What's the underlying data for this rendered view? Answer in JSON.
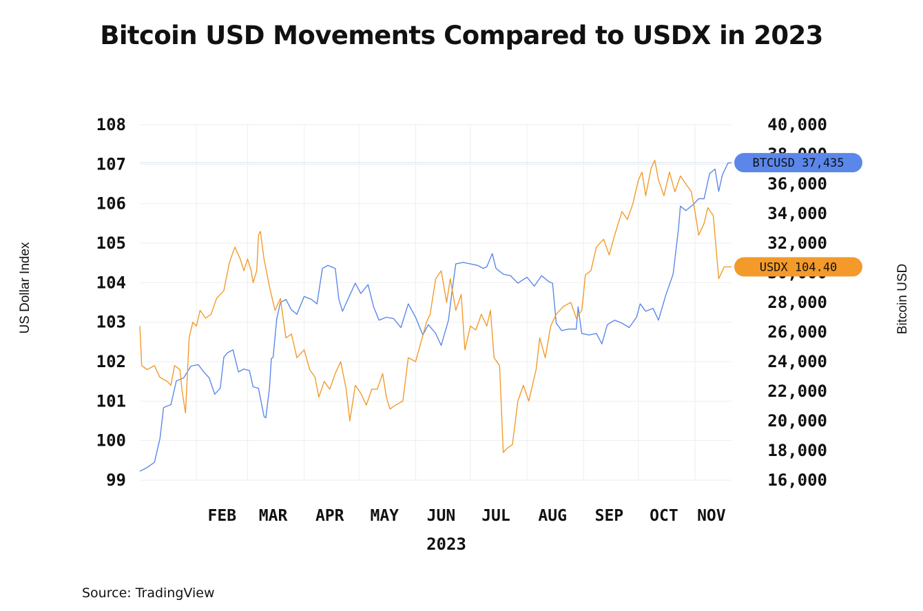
{
  "title": "Bitcoin USD Movements Compared to USDX in 2023",
  "source": "Source: TradingView",
  "colors": {
    "btc": "#5b87ea",
    "usdx": "#f39a2b",
    "grid": "#eeeeee"
  },
  "chart_data": {
    "type": "line",
    "title": "Bitcoin USD Movements Compared to USDX in 2023",
    "xlabel": "2023",
    "ylabel_left": "US Dollar Index",
    "ylabel_right": "Bitcoin USD",
    "x_ticks": [
      "FEB",
      "MAR",
      "APR",
      "MAY",
      "JUN",
      "JUL",
      "AUG",
      "SEP",
      "OCT",
      "NOV"
    ],
    "y_left_ticks": [
      "108",
      "107",
      "106",
      "105",
      "104",
      "103",
      "102",
      "101",
      "100",
      "99"
    ],
    "y_right_ticks": [
      "40,000",
      "38,000",
      "36,000",
      "34,000",
      "32,000",
      "30,000",
      "28,000",
      "26,000",
      "24,000",
      "22,000",
      "20,000",
      "18,000",
      "16,000"
    ],
    "ylim_left": [
      99,
      108
    ],
    "ylim_right": [
      16000,
      40000
    ],
    "grid": true,
    "series": [
      {
        "name": "BTCUSD",
        "axis": "right",
        "last_label": "BTCUSD 37,435",
        "points": [
          [
            "2023-01-01",
            16600
          ],
          [
            "2023-01-05",
            16850
          ],
          [
            "2023-01-09",
            17200
          ],
          [
            "2023-01-12",
            18800
          ],
          [
            "2023-01-14",
            20900
          ],
          [
            "2023-01-18",
            21100
          ],
          [
            "2023-01-21",
            22700
          ],
          [
            "2023-01-25",
            22900
          ],
          [
            "2023-01-29",
            23700
          ],
          [
            "2023-02-02",
            23800
          ],
          [
            "2023-02-05",
            23300
          ],
          [
            "2023-02-08",
            22900
          ],
          [
            "2023-02-11",
            21800
          ],
          [
            "2023-02-14",
            22200
          ],
          [
            "2023-02-16",
            24300
          ],
          [
            "2023-02-18",
            24600
          ],
          [
            "2023-02-21",
            24800
          ],
          [
            "2023-02-24",
            23300
          ],
          [
            "2023-02-27",
            23500
          ],
          [
            "2023-03-02",
            23400
          ],
          [
            "2023-03-04",
            22300
          ],
          [
            "2023-03-07",
            22200
          ],
          [
            "2023-03-10",
            20300
          ],
          [
            "2023-03-11",
            20200
          ],
          [
            "2023-03-13",
            22200
          ],
          [
            "2023-03-14",
            24200
          ],
          [
            "2023-03-15",
            24300
          ],
          [
            "2023-03-17",
            26900
          ],
          [
            "2023-03-19",
            28000
          ],
          [
            "2023-03-22",
            28200
          ],
          [
            "2023-03-25",
            27500
          ],
          [
            "2023-03-28",
            27200
          ],
          [
            "2023-04-01",
            28400
          ],
          [
            "2023-04-05",
            28200
          ],
          [
            "2023-04-08",
            27900
          ],
          [
            "2023-04-11",
            30300
          ],
          [
            "2023-04-14",
            30500
          ],
          [
            "2023-04-18",
            30300
          ],
          [
            "2023-04-20",
            28200
          ],
          [
            "2023-04-22",
            27400
          ],
          [
            "2023-04-26",
            28500
          ],
          [
            "2023-04-29",
            29300
          ],
          [
            "2023-05-02",
            28600
          ],
          [
            "2023-05-06",
            29200
          ],
          [
            "2023-05-09",
            27700
          ],
          [
            "2023-05-12",
            26800
          ],
          [
            "2023-05-16",
            27000
          ],
          [
            "2023-05-20",
            26900
          ],
          [
            "2023-05-24",
            26300
          ],
          [
            "2023-05-28",
            27900
          ],
          [
            "2023-06-01",
            27000
          ],
          [
            "2023-06-05",
            25800
          ],
          [
            "2023-06-08",
            26500
          ],
          [
            "2023-06-12",
            25900
          ],
          [
            "2023-06-15",
            25100
          ],
          [
            "2023-06-19",
            26800
          ],
          [
            "2023-06-21",
            28800
          ],
          [
            "2023-06-23",
            30600
          ],
          [
            "2023-06-27",
            30700
          ],
          [
            "2023-07-01",
            30600
          ],
          [
            "2023-07-05",
            30500
          ],
          [
            "2023-07-08",
            30300
          ],
          [
            "2023-07-10",
            30400
          ],
          [
            "2023-07-13",
            31300
          ],
          [
            "2023-07-15",
            30300
          ],
          [
            "2023-07-19",
            29900
          ],
          [
            "2023-07-23",
            29800
          ],
          [
            "2023-07-27",
            29300
          ],
          [
            "2023-08-01",
            29700
          ],
          [
            "2023-08-05",
            29100
          ],
          [
            "2023-08-09",
            29800
          ],
          [
            "2023-08-13",
            29400
          ],
          [
            "2023-08-15",
            29300
          ],
          [
            "2023-08-17",
            26600
          ],
          [
            "2023-08-20",
            26100
          ],
          [
            "2023-08-24",
            26200
          ],
          [
            "2023-08-28",
            26200
          ],
          [
            "2023-08-29",
            27700
          ],
          [
            "2023-08-31",
            25900
          ],
          [
            "2023-09-04",
            25800
          ],
          [
            "2023-09-08",
            25900
          ],
          [
            "2023-09-11",
            25200
          ],
          [
            "2023-09-14",
            26500
          ],
          [
            "2023-09-18",
            26800
          ],
          [
            "2023-09-22",
            26600
          ],
          [
            "2023-09-26",
            26300
          ],
          [
            "2023-09-30",
            27000
          ],
          [
            "2023-10-02",
            27900
          ],
          [
            "2023-10-05",
            27400
          ],
          [
            "2023-10-09",
            27600
          ],
          [
            "2023-10-12",
            26800
          ],
          [
            "2023-10-16",
            28500
          ],
          [
            "2023-10-20",
            29900
          ],
          [
            "2023-10-23",
            33000
          ],
          [
            "2023-10-24",
            34500
          ],
          [
            "2023-10-27",
            34200
          ],
          [
            "2023-10-31",
            34600
          ],
          [
            "2023-11-03",
            35000
          ],
          [
            "2023-11-06",
            35000
          ],
          [
            "2023-11-09",
            36700
          ],
          [
            "2023-11-12",
            37000
          ],
          [
            "2023-11-14",
            35500
          ],
          [
            "2023-11-16",
            36600
          ],
          [
            "2023-11-19",
            37400
          ],
          [
            "2023-11-21",
            37435
          ]
        ]
      },
      {
        "name": "USDX",
        "axis": "left",
        "last_label": "USDX 104.40",
        "points": [
          [
            "2023-01-01",
            102.9
          ],
          [
            "2023-01-02",
            101.9
          ],
          [
            "2023-01-05",
            101.8
          ],
          [
            "2023-01-09",
            101.9
          ],
          [
            "2023-01-12",
            101.6
          ],
          [
            "2023-01-16",
            101.5
          ],
          [
            "2023-01-18",
            101.4
          ],
          [
            "2023-01-20",
            101.9
          ],
          [
            "2023-01-23",
            101.8
          ],
          [
            "2023-01-24",
            101.3
          ],
          [
            "2023-01-26",
            100.7
          ],
          [
            "2023-01-28",
            102.6
          ],
          [
            "2023-01-30",
            103.0
          ],
          [
            "2023-02-01",
            102.9
          ],
          [
            "2023-02-03",
            103.3
          ],
          [
            "2023-02-06",
            103.1
          ],
          [
            "2023-02-09",
            103.2
          ],
          [
            "2023-02-12",
            103.6
          ],
          [
            "2023-02-16",
            103.8
          ],
          [
            "2023-02-19",
            104.5
          ],
          [
            "2023-02-22",
            104.9
          ],
          [
            "2023-02-25",
            104.6
          ],
          [
            "2023-02-27",
            104.3
          ],
          [
            "2023-03-01",
            104.6
          ],
          [
            "2023-03-03",
            104.3
          ],
          [
            "2023-03-04",
            104.0
          ],
          [
            "2023-03-06",
            104.3
          ],
          [
            "2023-03-07",
            105.2
          ],
          [
            "2023-03-08",
            105.3
          ],
          [
            "2023-03-10",
            104.6
          ],
          [
            "2023-03-13",
            103.9
          ],
          [
            "2023-03-16",
            103.3
          ],
          [
            "2023-03-19",
            103.6
          ],
          [
            "2023-03-22",
            102.6
          ],
          [
            "2023-03-25",
            102.7
          ],
          [
            "2023-03-28",
            102.1
          ],
          [
            "2023-04-01",
            102.3
          ],
          [
            "2023-04-04",
            101.8
          ],
          [
            "2023-04-07",
            101.6
          ],
          [
            "2023-04-09",
            101.1
          ],
          [
            "2023-04-12",
            101.5
          ],
          [
            "2023-04-15",
            101.3
          ],
          [
            "2023-04-18",
            101.7
          ],
          [
            "2023-04-21",
            102.0
          ],
          [
            "2023-04-24",
            101.3
          ],
          [
            "2023-04-26",
            100.5
          ],
          [
            "2023-04-29",
            101.4
          ],
          [
            "2023-05-02",
            101.2
          ],
          [
            "2023-05-05",
            100.9
          ],
          [
            "2023-05-08",
            101.3
          ],
          [
            "2023-05-11",
            101.3
          ],
          [
            "2023-05-14",
            101.7
          ],
          [
            "2023-05-16",
            101.1
          ],
          [
            "2023-05-18",
            100.8
          ],
          [
            "2023-05-21",
            100.9
          ],
          [
            "2023-05-25",
            101.0
          ],
          [
            "2023-05-28",
            102.1
          ],
          [
            "2023-06-01",
            102.0
          ],
          [
            "2023-06-04",
            102.5
          ],
          [
            "2023-06-07",
            103.0
          ],
          [
            "2023-06-09",
            103.2
          ],
          [
            "2023-06-12",
            104.1
          ],
          [
            "2023-06-15",
            104.3
          ],
          [
            "2023-06-18",
            103.5
          ],
          [
            "2023-06-20",
            104.1
          ],
          [
            "2023-06-23",
            103.3
          ],
          [
            "2023-06-26",
            103.7
          ],
          [
            "2023-06-28",
            102.3
          ],
          [
            "2023-07-01",
            102.9
          ],
          [
            "2023-07-04",
            102.8
          ],
          [
            "2023-07-07",
            103.2
          ],
          [
            "2023-07-10",
            102.9
          ],
          [
            "2023-07-12",
            103.3
          ],
          [
            "2023-07-14",
            102.1
          ],
          [
            "2023-07-17",
            101.9
          ],
          [
            "2023-07-19",
            99.7
          ],
          [
            "2023-07-21",
            99.8
          ],
          [
            "2023-07-24",
            99.9
          ],
          [
            "2023-07-27",
            101.0
          ],
          [
            "2023-07-30",
            101.4
          ],
          [
            "2023-08-02",
            101.0
          ],
          [
            "2023-08-06",
            101.8
          ],
          [
            "2023-08-08",
            102.6
          ],
          [
            "2023-08-11",
            102.1
          ],
          [
            "2023-08-14",
            102.9
          ],
          [
            "2023-08-17",
            103.2
          ],
          [
            "2023-08-21",
            103.4
          ],
          [
            "2023-08-25",
            103.5
          ],
          [
            "2023-08-28",
            103.1
          ],
          [
            "2023-08-31",
            103.3
          ],
          [
            "2023-09-02",
            104.2
          ],
          [
            "2023-09-05",
            104.3
          ],
          [
            "2023-09-08",
            104.9
          ],
          [
            "2023-09-12",
            105.1
          ],
          [
            "2023-09-15",
            104.7
          ],
          [
            "2023-09-18",
            105.2
          ],
          [
            "2023-09-22",
            105.8
          ],
          [
            "2023-09-25",
            105.6
          ],
          [
            "2023-09-28",
            106.0
          ],
          [
            "2023-10-01",
            106.6
          ],
          [
            "2023-10-03",
            106.8
          ],
          [
            "2023-10-05",
            106.2
          ],
          [
            "2023-10-08",
            106.9
          ],
          [
            "2023-10-10",
            107.1
          ],
          [
            "2023-10-12",
            106.6
          ],
          [
            "2023-10-15",
            106.2
          ],
          [
            "2023-10-18",
            106.8
          ],
          [
            "2023-10-21",
            106.3
          ],
          [
            "2023-10-24",
            106.7
          ],
          [
            "2023-10-27",
            106.5
          ],
          [
            "2023-10-30",
            106.3
          ],
          [
            "2023-11-01",
            105.8
          ],
          [
            "2023-11-03",
            105.2
          ],
          [
            "2023-11-06",
            105.5
          ],
          [
            "2023-11-08",
            105.9
          ],
          [
            "2023-11-11",
            105.7
          ],
          [
            "2023-11-14",
            104.1
          ],
          [
            "2023-11-17",
            104.4
          ],
          [
            "2023-11-21",
            104.4
          ]
        ]
      }
    ]
  }
}
